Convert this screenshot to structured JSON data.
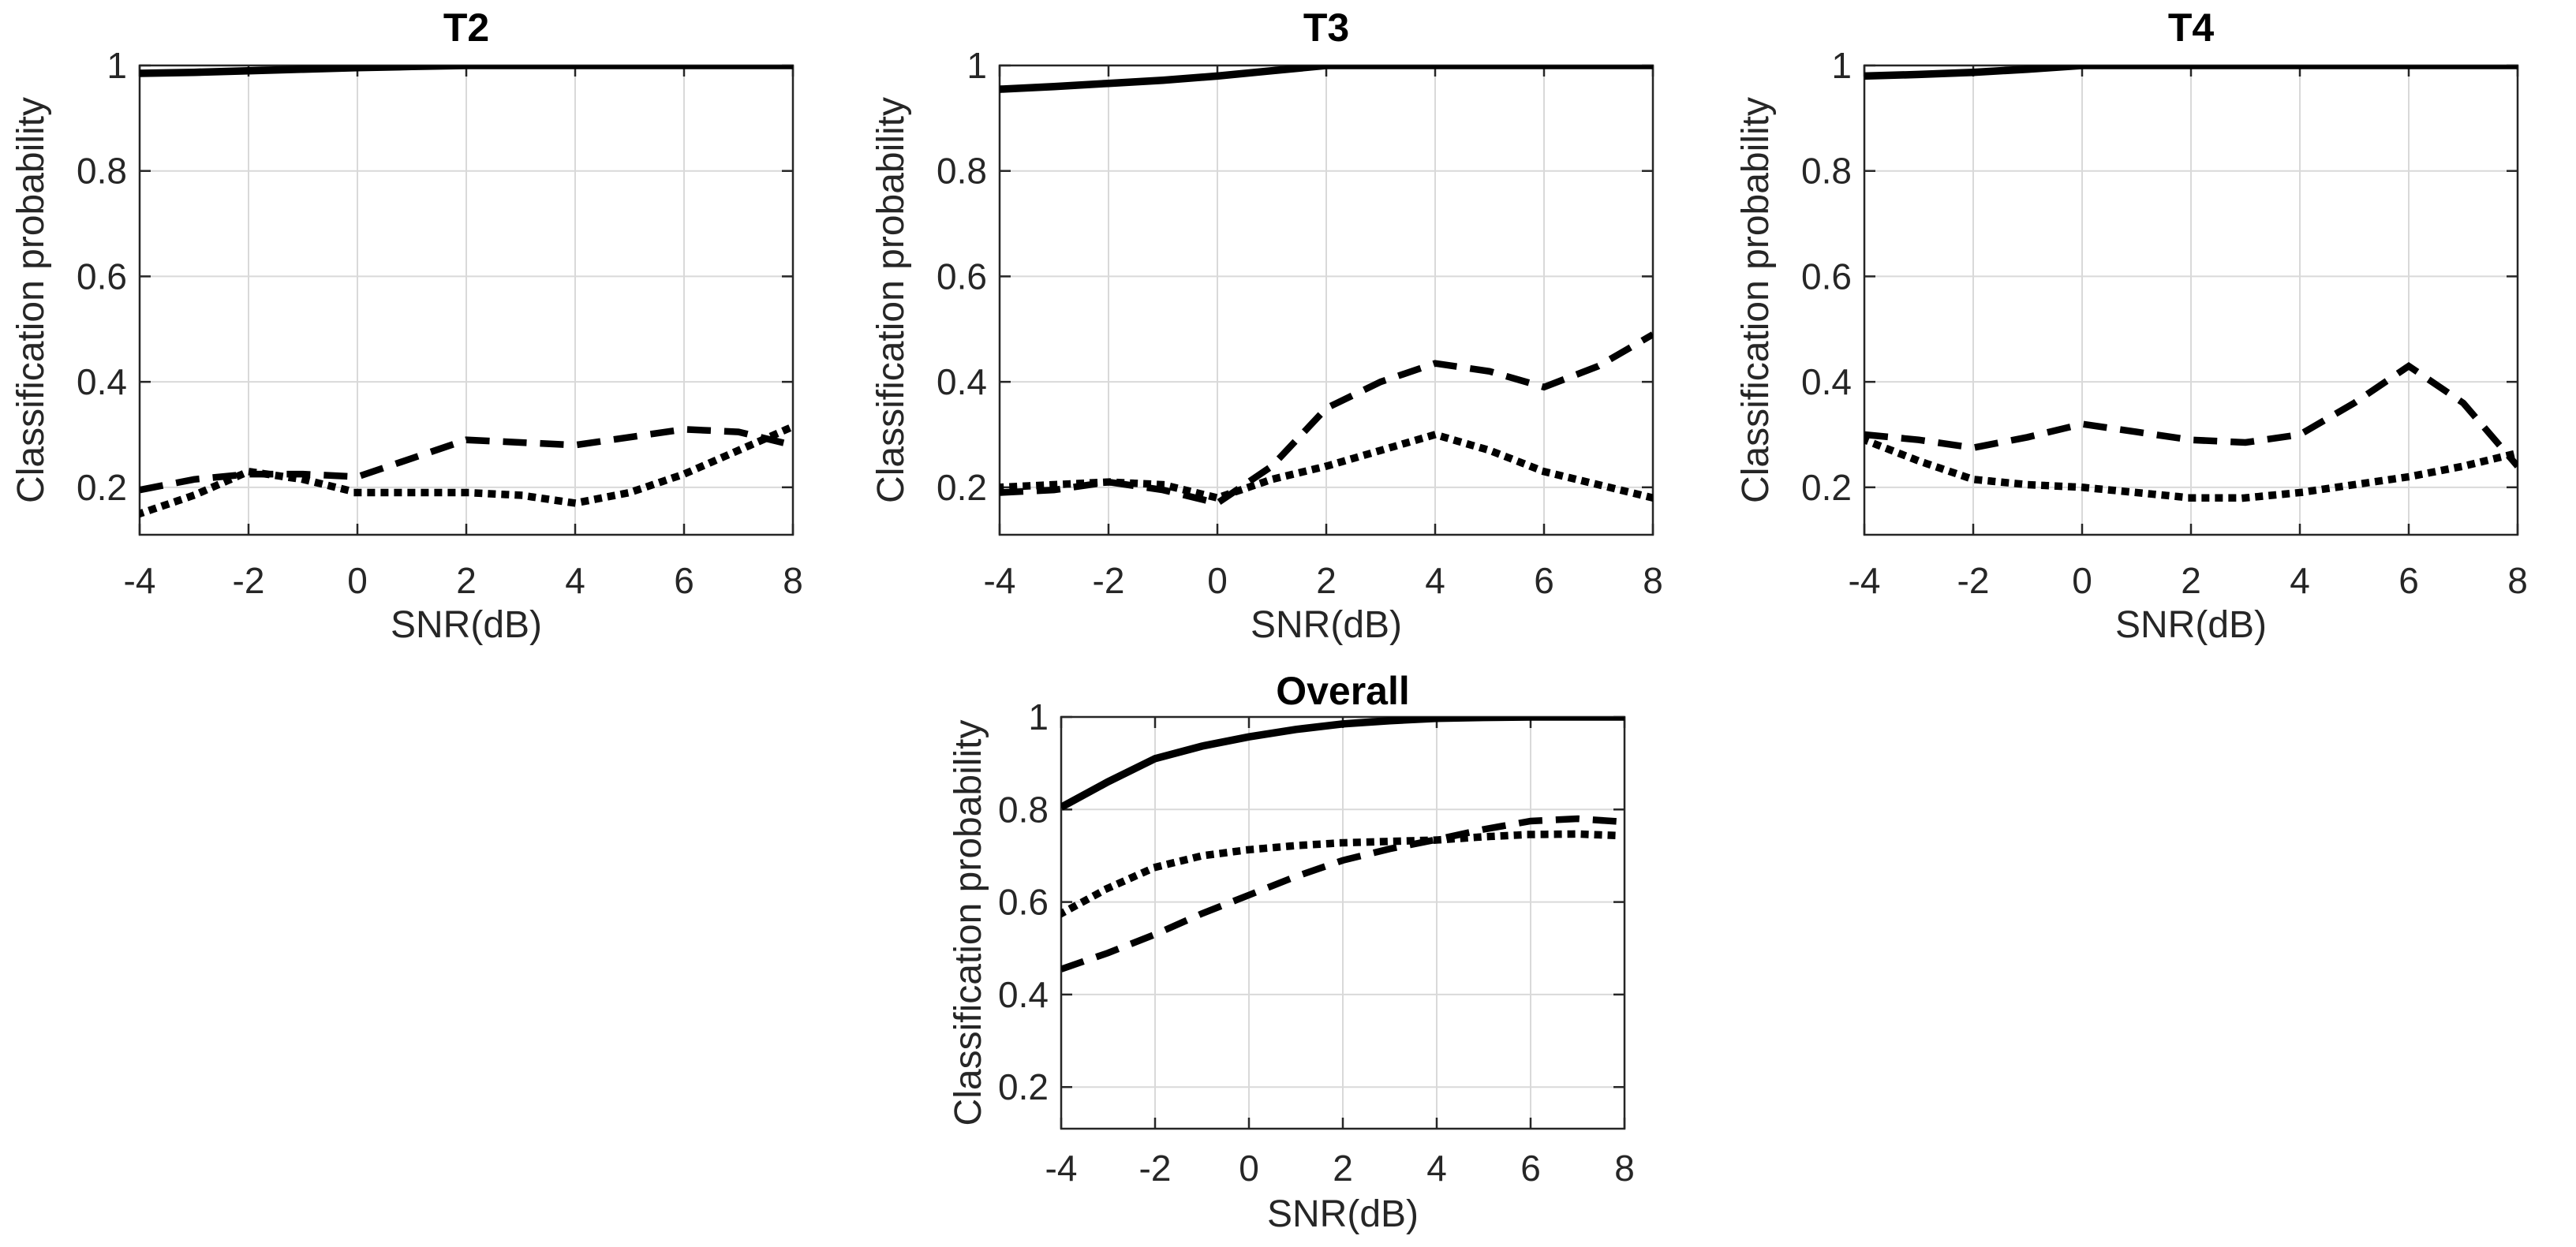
{
  "figure": {
    "colors": {
      "line": "#000000",
      "grid": "#d9d9d9",
      "axis": "#262626",
      "text": "#262626",
      "background": "#ffffff"
    }
  },
  "chart_data": [
    {
      "id": "t2",
      "type": "line",
      "title": "T2",
      "xlabel": "SNR(dB)",
      "ylabel": "Classification probability",
      "grid": true,
      "legend": "none",
      "xlim": [
        -4,
        8
      ],
      "ylim": [
        0.11,
        1.0
      ],
      "xticks": [
        -4,
        -2,
        0,
        2,
        4,
        6,
        8
      ],
      "xticklabels": [
        "-4",
        "-2",
        "0",
        "2",
        "4",
        "6",
        "8"
      ],
      "yticks": [
        0.2,
        0.4,
        0.6,
        0.8,
        1
      ],
      "yticklabels": [
        "0.2",
        "0.4",
        "0.6",
        "0.8",
        "1"
      ],
      "x": [
        -4,
        -3,
        -2,
        -1,
        0,
        1,
        2,
        3,
        4,
        5,
        6,
        7,
        8
      ],
      "series": [
        {
          "name": "solid line",
          "style": "solid",
          "values": [
            0.985,
            0.987,
            0.99,
            0.993,
            0.996,
            0.998,
            1.0,
            1.0,
            1.0,
            1.0,
            1.0,
            1.0,
            1.0
          ]
        },
        {
          "name": "dashed line",
          "style": "dashed",
          "values": [
            0.195,
            0.215,
            0.225,
            0.225,
            0.22,
            0.255,
            0.29,
            0.285,
            0.28,
            0.295,
            0.31,
            0.305,
            0.28
          ]
        },
        {
          "name": "dotted line",
          "style": "dotted",
          "values": [
            0.15,
            0.185,
            0.23,
            0.215,
            0.19,
            0.19,
            0.19,
            0.185,
            0.17,
            0.19,
            0.225,
            0.27,
            0.315
          ]
        }
      ]
    },
    {
      "id": "t3",
      "type": "line",
      "title": "T3",
      "xlabel": "SNR(dB)",
      "ylabel": "Classification probability",
      "grid": true,
      "legend": "none",
      "xlim": [
        -4,
        8
      ],
      "ylim": [
        0.11,
        1.0
      ],
      "xticks": [
        -4,
        -2,
        0,
        2,
        4,
        6,
        8
      ],
      "xticklabels": [
        "-4",
        "-2",
        "0",
        "2",
        "4",
        "6",
        "8"
      ],
      "yticks": [
        0.2,
        0.4,
        0.6,
        0.8,
        1
      ],
      "yticklabels": [
        "0.2",
        "0.4",
        "0.6",
        "0.8",
        "1"
      ],
      "x": [
        -4,
        -3,
        -2,
        -1,
        0,
        1,
        2,
        3,
        4,
        5,
        6,
        7,
        8
      ],
      "series": [
        {
          "name": "solid line",
          "style": "solid",
          "values": [
            0.955,
            0.96,
            0.966,
            0.972,
            0.98,
            0.99,
            1.0,
            1.0,
            1.0,
            1.0,
            1.0,
            1.0,
            1.0
          ]
        },
        {
          "name": "dashed line",
          "style": "dashed",
          "values": [
            0.19,
            0.195,
            0.21,
            0.195,
            0.17,
            0.24,
            0.35,
            0.4,
            0.435,
            0.42,
            0.39,
            0.43,
            0.49
          ]
        },
        {
          "name": "dotted line",
          "style": "dotted",
          "values": [
            0.2,
            0.205,
            0.21,
            0.205,
            0.18,
            0.215,
            0.24,
            0.27,
            0.3,
            0.27,
            0.23,
            0.205,
            0.18
          ]
        }
      ]
    },
    {
      "id": "t4",
      "type": "line",
      "title": "T4",
      "xlabel": "SNR(dB)",
      "ylabel": "Classification probability",
      "grid": true,
      "legend": "none",
      "xlim": [
        -4,
        8
      ],
      "ylim": [
        0.11,
        1.0
      ],
      "xticks": [
        -4,
        -2,
        0,
        2,
        4,
        6,
        8
      ],
      "xticklabels": [
        "-4",
        "-2",
        "0",
        "2",
        "4",
        "6",
        "8"
      ],
      "yticks": [
        0.2,
        0.4,
        0.6,
        0.8,
        1
      ],
      "yticklabels": [
        "0.2",
        "0.4",
        "0.6",
        "0.8",
        "1"
      ],
      "x": [
        -4,
        -3,
        -2,
        -1,
        0,
        1,
        2,
        3,
        4,
        5,
        6,
        7,
        8
      ],
      "series": [
        {
          "name": "solid line",
          "style": "solid",
          "values": [
            0.98,
            0.983,
            0.987,
            0.993,
            1.0,
            1.0,
            1.0,
            1.0,
            1.0,
            1.0,
            1.0,
            1.0,
            1.0
          ]
        },
        {
          "name": "dashed line",
          "style": "dashed",
          "values": [
            0.3,
            0.29,
            0.275,
            0.295,
            0.32,
            0.305,
            0.29,
            0.285,
            0.3,
            0.36,
            0.43,
            0.36,
            0.24
          ]
        },
        {
          "name": "dotted line",
          "style": "dotted",
          "values": [
            0.29,
            0.25,
            0.215,
            0.205,
            0.2,
            0.19,
            0.18,
            0.18,
            0.19,
            0.205,
            0.22,
            0.24,
            0.265
          ]
        }
      ]
    },
    {
      "id": "overall",
      "type": "line",
      "title": "Overall",
      "xlabel": "SNR(dB)",
      "ylabel": "Classification probability",
      "grid": true,
      "legend": "none",
      "xlim": [
        -4,
        8
      ],
      "ylim": [
        0.11,
        1.0
      ],
      "xticks": [
        -4,
        -2,
        0,
        2,
        4,
        6,
        8
      ],
      "xticklabels": [
        "-4",
        "-2",
        "0",
        "2",
        "4",
        "6",
        "8"
      ],
      "yticks": [
        0.2,
        0.4,
        0.6,
        0.8,
        1
      ],
      "yticklabels": [
        "0.2",
        "0.4",
        "0.6",
        "0.8",
        "1"
      ],
      "x": [
        -4,
        -3,
        -2,
        -1,
        0,
        1,
        2,
        3,
        4,
        5,
        6,
        7,
        8
      ],
      "series": [
        {
          "name": "solid line",
          "style": "solid",
          "values": [
            0.805,
            0.86,
            0.91,
            0.937,
            0.957,
            0.973,
            0.985,
            0.992,
            0.997,
            0.999,
            1.0,
            1.0,
            1.0
          ]
        },
        {
          "name": "dashed line",
          "style": "dashed",
          "values": [
            0.455,
            0.49,
            0.53,
            0.575,
            0.615,
            0.655,
            0.69,
            0.715,
            0.735,
            0.757,
            0.775,
            0.78,
            0.773
          ]
        },
        {
          "name": "dotted line",
          "style": "dotted",
          "values": [
            0.575,
            0.63,
            0.675,
            0.7,
            0.713,
            0.722,
            0.728,
            0.731,
            0.734,
            0.741,
            0.746,
            0.747,
            0.743
          ]
        }
      ]
    }
  ]
}
